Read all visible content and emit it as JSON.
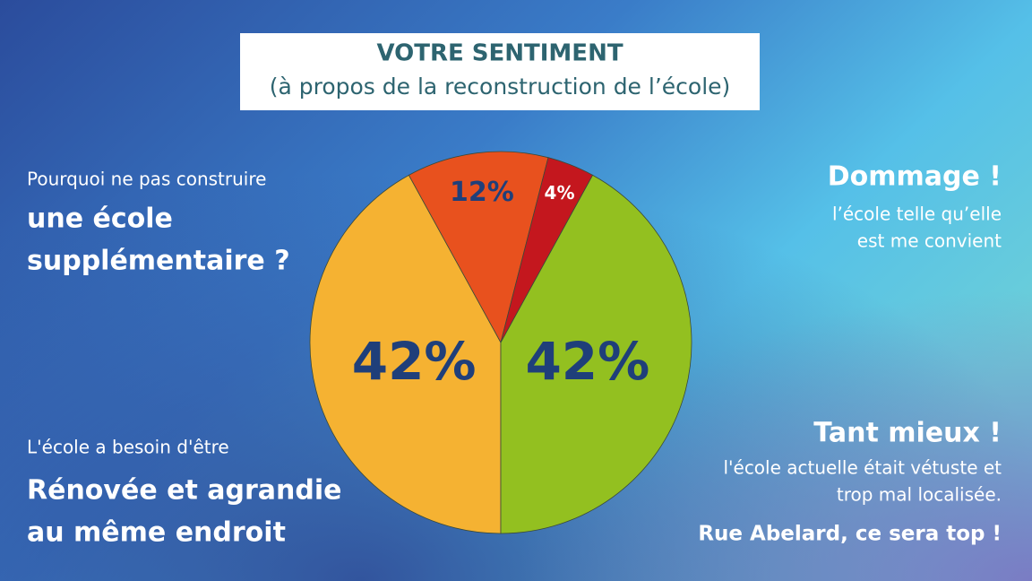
{
  "chart_data": {
    "type": "pie",
    "title": "VOTRE SENTIMENT",
    "subtitle": "(à propos de la reconstruction de l’école)",
    "series": [
      {
        "values": [
          42,
          12,
          4,
          42
        ],
        "value_labels": [
          "42%",
          "12%",
          "4%",
          "42%"
        ],
        "colors": [
          "#f5b232",
          "#e8511e",
          "#c4171e",
          "#93c020"
        ]
      }
    ],
    "annotations": {
      "left_top": [
        "Pourquoi ne pas construire",
        "une école",
        "supplémentaire ?"
      ],
      "left_bottom": [
        "L'école a besoin d'être",
        "Rénovée et agrandie",
        "au même endroit"
      ],
      "right_top": [
        "Dommage !",
        "l’école telle qu’elle",
        "est me convient"
      ],
      "right_bottom": [
        "Tant mieux !",
        "l'école actuelle était vétuste et",
        "trop mal localisée.",
        "Rue Abelard, ce sera top !"
      ]
    }
  }
}
